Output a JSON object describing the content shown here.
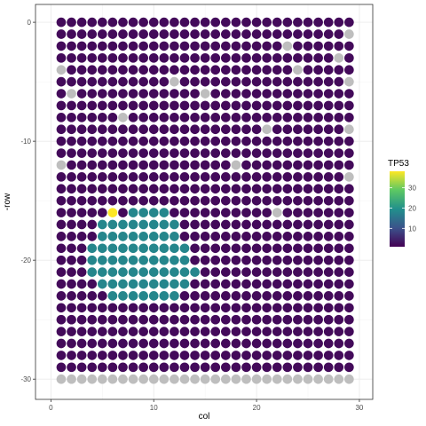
{
  "chart_data": {
    "type": "scatter",
    "subtype": "spatial-spot-grid",
    "title": "",
    "xlabel": "col",
    "ylabel": "-row",
    "xlim": [
      -1.5,
      31.3
    ],
    "ylim": [
      -31.7,
      1.5
    ],
    "xticks": [
      0,
      10,
      20,
      30
    ],
    "yticks": [
      0,
      -10,
      -20,
      -30
    ],
    "xtick_labels": [
      "0",
      "10",
      "20",
      "30"
    ],
    "ytick_labels": [
      "0",
      "-10",
      "-20",
      "-30"
    ],
    "grid": true,
    "theme": "bw",
    "legend": {
      "title": "TP53",
      "placement": "right",
      "ticks": [
        10,
        20,
        30
      ],
      "tick_labels": [
        "10",
        "20",
        "30"
      ],
      "range": [
        1,
        38
      ],
      "colormap": "viridis"
    },
    "colors": {
      "na": "#bebebe",
      "low": "#440154",
      "mid": "#21908C",
      "high": "#FDE725"
    },
    "spot_grid": {
      "columns": [
        1,
        29
      ],
      "rows": [
        0,
        30
      ],
      "cell_spacing_units": 1,
      "value_levels": {
        "low": 2,
        "mid": 18,
        "high": 38,
        "na": null
      }
    },
    "rows": [
      {
        "row": 0,
        "pattern": "LLLLLLLLLLLLLLLLLLLLLLLLLLLLL"
      },
      {
        "row": 1,
        "pattern": "LLLLLLLLLLLLLLLLLLLLLLLLLLLLN"
      },
      {
        "row": 2,
        "pattern": "LLLLLLLLLLLLLLLLLLLLLLNLLLLLL"
      },
      {
        "row": 3,
        "pattern": "LLLLLLLLLLLLLLLLLLLLLLLLLLLNL"
      },
      {
        "row": 4,
        "pattern": "NLLLLLLLLLLLLLLLLLLLLLLNLLLLL"
      },
      {
        "row": 5,
        "pattern": "LLLLLLLLLLLNLLLLLLLLLLLLLLLLN"
      },
      {
        "row": 6,
        "pattern": "LNLLLLLLLLLLLLNLLLLLLLLLLLLLL"
      },
      {
        "row": 7,
        "pattern": "LLLLLLLLLLLLLLLLLLLLLLLLLLLLL"
      },
      {
        "row": 8,
        "pattern": "LLLLLLNLLLLLLLLLLLLLLLLLLLLLL"
      },
      {
        "row": 9,
        "pattern": "LLLLLLLLLLLLLLLLLLLLNLLLLLLLN"
      },
      {
        "row": 10,
        "pattern": "LLLLLLLLLLLLLLLLLLLLLLLLLLLLL"
      },
      {
        "row": 11,
        "pattern": "LLLLLLLLLLLLLLLLLLLLLLLLLLLLL"
      },
      {
        "row": 12,
        "pattern": "NLLLLLLLLLLLLLLLLNLLLLLLLLLLL"
      },
      {
        "row": 13,
        "pattern": "LLLLLLLLLLLLLLLLLLLLLLLLLLLLN"
      },
      {
        "row": 14,
        "pattern": "LLLLLLLLLLLLLLLLLLLLLLLLLLLLL"
      },
      {
        "row": 15,
        "pattern": "LLLLLLLLLLLLLLLLLLLLLLLLLLLLL"
      },
      {
        "row": 16,
        "pattern": "LLLLLHLMMMMLLLLLLLLLLNLLLLLLL"
      },
      {
        "row": 17,
        "pattern": "LLLLMMMMMMMMLLLLLLLLLLLLLLLLL"
      },
      {
        "row": 18,
        "pattern": "LLLLMMMMMMMMLLLLLLLLLLLLLLLLL"
      },
      {
        "row": 19,
        "pattern": "LLLMMMMMMMMMMLLLLLLLLLLLLLLLL"
      },
      {
        "row": 20,
        "pattern": "LLLMMMMMMMMMMLLLLLLLLLLLLLLLL"
      },
      {
        "row": 21,
        "pattern": "LLLMMMMMMMMMMMLLLLLLLLLLLLLLL"
      },
      {
        "row": 22,
        "pattern": "LLLLMMMMMMMMMLLLLLLLLLLLLLLLL"
      },
      {
        "row": 23,
        "pattern": "LLLLLMMMMMMMLLLLLLLLLLLLLLLLL"
      },
      {
        "row": 24,
        "pattern": "LLLLLLLLLLLLLLLLLLLLLLLLLLLLL"
      },
      {
        "row": 25,
        "pattern": "LLLLLLLLLLLLLLLLLLLLLLLLLLLLL"
      },
      {
        "row": 26,
        "pattern": "LLLLLLLLLLLLLLLLLLLLLLLLLLLLL"
      },
      {
        "row": 27,
        "pattern": "LLLLLLLLLLLLLLLLLLLLLLLLLLLLL"
      },
      {
        "row": 28,
        "pattern": "LLLLLLLLLLLLLLLLLLLLLLLLLLLLL"
      },
      {
        "row": 29,
        "pattern": "LLLLLLLLLLLLLLLLLLLLLLLLLLLLL"
      },
      {
        "row": 30,
        "pattern": "NNNNNNNNNNNNNNNNNNNNNNNNNNNNN"
      }
    ]
  }
}
